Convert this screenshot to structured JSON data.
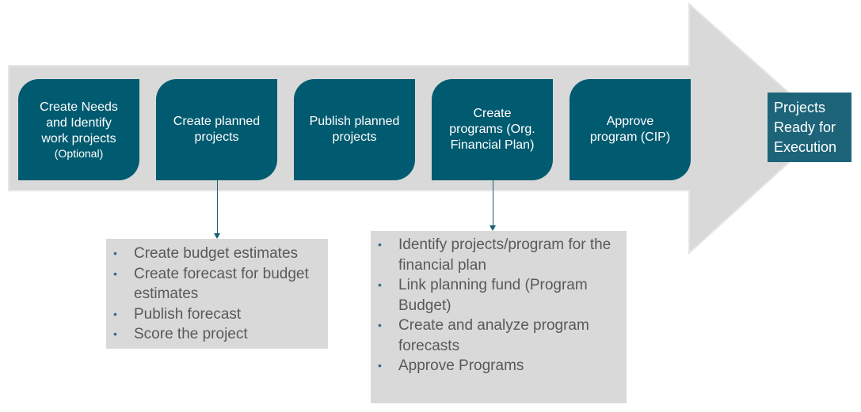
{
  "colors": {
    "arrow_fill": "#d9d9d9",
    "step_fill": "#005b70",
    "final_fill": "#1d6479",
    "detail_fill": "#d9d9d9",
    "detail_text": "#595959",
    "connector": "#1a5e73"
  },
  "steps": [
    {
      "lines": [
        "Create Needs",
        "and Identify",
        "work projects"
      ],
      "sub": "(Optional)"
    },
    {
      "lines": [
        "Create planned",
        "projects"
      ],
      "sub": ""
    },
    {
      "lines": [
        "Publish planned",
        "projects"
      ],
      "sub": ""
    },
    {
      "lines": [
        "Create",
        "programs (Org.",
        "Financial Plan)"
      ],
      "sub": ""
    },
    {
      "lines": [
        "Approve",
        "program (CIP)"
      ],
      "sub": ""
    }
  ],
  "final": {
    "lines": [
      "Projects",
      "Ready for",
      "Execution"
    ]
  },
  "details": {
    "planned_projects": {
      "items": [
        "Create budget estimates",
        "Create forecast for budget estimates",
        "Publish forecast",
        "Score the project"
      ]
    },
    "programs": {
      "items": [
        "Identify projects/program for the financial plan",
        "Link planning fund (Program Budget)",
        "Create and analyze program forecasts",
        "Approve Programs"
      ]
    }
  },
  "bullet_glyph": "•"
}
